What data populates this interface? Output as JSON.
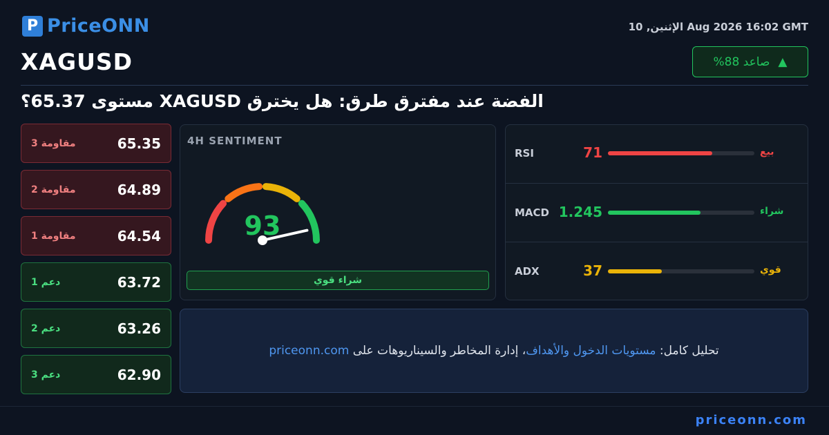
{
  "header": {
    "logo": "PriceONN",
    "symbol": "XAGUSD",
    "date": "الإثنين, 10 Aug 2026 16:02 GMT",
    "badge": "صاعد 88%",
    "title": "الفضة عند مفترق طرق: هل يخترق XAGUSD مستوى 65.37؟"
  },
  "levels": [
    {
      "label": "مقاومة 3",
      "value": "65.35",
      "kind": "resistance"
    },
    {
      "label": "مقاومة 2",
      "value": "64.89",
      "kind": "resistance"
    },
    {
      "label": "مقاومة 1",
      "value": "64.54",
      "kind": "resistance"
    },
    {
      "label": "دعم 1",
      "value": "63.72",
      "kind": "support"
    },
    {
      "label": "دعم 2",
      "value": "63.26",
      "kind": "support"
    },
    {
      "label": "دعم 3",
      "value": "62.90",
      "kind": "support"
    }
  ],
  "sentiment": {
    "title": "4H SENTIMENT",
    "value": 93,
    "range": [
      0,
      100
    ],
    "verdict": "شراء قوي"
  },
  "indicators": [
    {
      "name": "RSI",
      "value": 71,
      "signal": "بيع",
      "color": "#ef4444"
    },
    {
      "name": "MACD",
      "value": "1.245",
      "signal": "شراء",
      "color": "#22c55e"
    },
    {
      "name": "ADX",
      "value": 37,
      "signal": "قوي",
      "color": "#eab308"
    }
  ],
  "footer": {
    "text_before": "تحليل كامل: ",
    "link": "مستويات الدخول والأهداف",
    "text_after": "، إدارة المخاطر والسيناريوهات على ",
    "site": "priceonn.com",
    "brand_url": "priceonn.com"
  }
}
